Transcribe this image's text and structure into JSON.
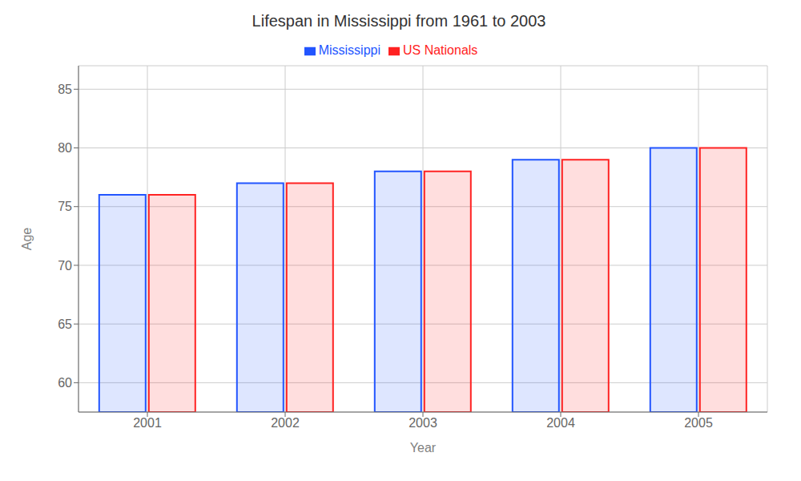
{
  "chart_data": {
    "type": "bar",
    "title": "Lifespan in Mississippi from 1961 to 2003",
    "xlabel": "Year",
    "ylabel": "Age",
    "categories": [
      "2001",
      "2002",
      "2003",
      "2004",
      "2005"
    ],
    "series": [
      {
        "name": "Mississippi",
        "color": "#2255ff",
        "values": [
          76,
          77,
          78,
          79,
          80
        ]
      },
      {
        "name": "US Nationals",
        "color": "#ff2222",
        "values": [
          76,
          77,
          78,
          79,
          80
        ]
      }
    ],
    "ylim": [
      57.5,
      87
    ],
    "yticks": [
      60,
      65,
      70,
      75,
      80,
      85
    ],
    "grid": true,
    "legend": "top"
  }
}
